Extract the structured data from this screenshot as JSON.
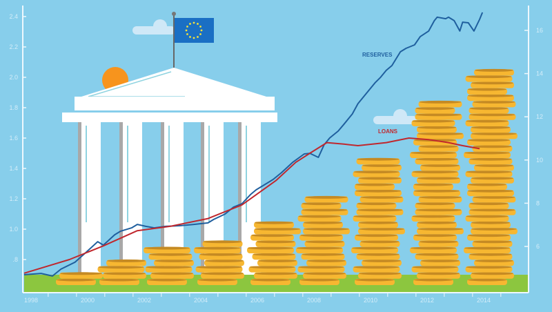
{
  "chart_data": {
    "type": "line",
    "title": "",
    "xlabel": "",
    "ylabel": "",
    "x_ticks": [
      "1998",
      "2000",
      "2002",
      "2004",
      "2006",
      "2008",
      "2010",
      "2012",
      "2014"
    ],
    "xlim": [
      1998,
      2015
    ],
    "left_axis": {
      "ticks": [
        ".8",
        "1.0",
        "1.2",
        "1.4",
        "1.6",
        "1.8",
        "2.0",
        "2.2",
        "2.4"
      ],
      "tick_values": [
        0.8,
        1.0,
        1.2,
        1.4,
        1.6,
        1.8,
        2.0,
        2.2,
        2.4
      ],
      "ylim": [
        0.7,
        2.45
      ]
    },
    "right_axis": {
      "ticks": [
        "6",
        "8",
        "10",
        "12",
        "14",
        "16"
      ],
      "tick_values": [
        6,
        8,
        10,
        12,
        14,
        16
      ],
      "ylim": [
        4.5,
        17.5
      ]
    },
    "grid": false,
    "series": [
      {
        "name": "RESERVES",
        "axis": "right",
        "color": "#1f5f9e",
        "x": [
          1998.0,
          1998.6,
          1999.0,
          1999.3,
          1999.8,
          2000.2,
          2000.6,
          2000.8,
          2001.2,
          2001.4,
          2001.8,
          2002.0,
          2002.3,
          2002.6,
          2003.0,
          2003.5,
          2004.0,
          2004.5,
          2004.7,
          2005.1,
          2005.4,
          2005.7,
          2006.0,
          2006.2,
          2006.4,
          2006.8,
          2007.1,
          2007.5,
          2007.9,
          2008.1,
          2008.4,
          2008.6,
          2008.8,
          2009.1,
          2009.3,
          2009.6,
          2009.8,
          2010.3,
          2010.4,
          2010.6,
          2010.8,
          2011.0,
          2011.3,
          2011.5,
          2011.8,
          2012.0,
          2012.3,
          2012.5,
          2012.6,
          2012.9,
          2013.0,
          2013.2,
          2013.4,
          2013.5,
          2013.7,
          2013.9,
          2014.1,
          2014.2
        ],
        "y": [
          4.69,
          4.75,
          4.63,
          4.95,
          5.27,
          5.74,
          6.22,
          6.06,
          6.54,
          6.7,
          6.86,
          7.02,
          6.93,
          6.86,
          6.93,
          6.96,
          7.02,
          7.09,
          7.25,
          7.5,
          7.82,
          7.98,
          8.4,
          8.62,
          8.78,
          9.1,
          9.42,
          9.9,
          10.28,
          10.31,
          10.12,
          10.7,
          11.02,
          11.34,
          11.65,
          12.13,
          12.61,
          13.41,
          13.57,
          13.83,
          14.15,
          14.37,
          15.01,
          15.17,
          15.33,
          15.71,
          15.97,
          16.45,
          16.61,
          16.54,
          16.61,
          16.45,
          15.97,
          16.38,
          16.35,
          15.97,
          16.51,
          16.83
        ]
      },
      {
        "name": "LOANS",
        "axis": "left",
        "color": "#c0272d",
        "x": [
          1998.0,
          1999.6,
          2000.8,
          2002.0,
          2003.2,
          2004.5,
          2005.7,
          2006.9,
          2007.6,
          2008.1,
          2008.7,
          2009.3,
          2009.8,
          2010.8,
          2011.6,
          2012.3,
          2013.0,
          2013.5,
          2014.1
        ],
        "y": [
          0.71,
          0.8,
          0.89,
          0.99,
          1.02,
          1.07,
          1.16,
          1.32,
          1.44,
          1.5,
          1.57,
          1.56,
          1.55,
          1.57,
          1.6,
          1.59,
          1.57,
          1.55,
          1.53
        ]
      }
    ],
    "legend": "inline labels next to lines"
  },
  "colors": {
    "sky": "#87ceeb",
    "ground": "#8cc63f",
    "coin": "#f7b731",
    "coin_edge": "#b7791f",
    "sun": "#f7941d",
    "flag": "#1a6fc4",
    "axis": "#eef8fd"
  },
  "icons": {
    "flag": "eu-flag-icon",
    "building": "bank-building-icon",
    "coins": "coin-stack-icon"
  }
}
